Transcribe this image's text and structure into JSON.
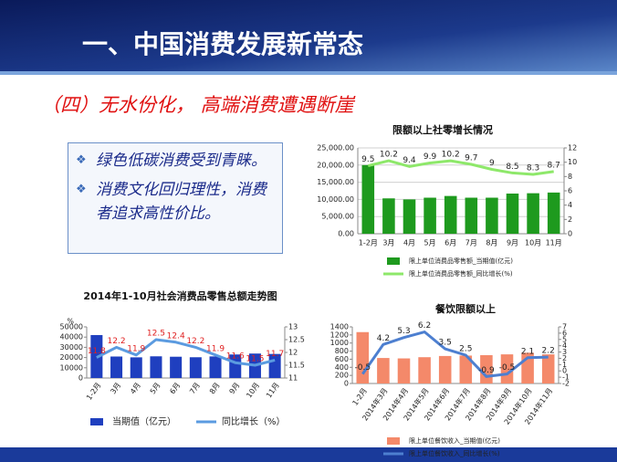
{
  "slide": {
    "title": "一、中国消费发展新常态",
    "subtitle": "（四）无水份化，  高端消费遭遇断崖",
    "bullets": [
      "绿色低碳消费受到青睐。",
      "消费文化回归理性，消费者追求高性价比。"
    ]
  },
  "chart_data": [
    {
      "type": "bar",
      "title": "限额以上社零增长情况",
      "categories": [
        "1-2月",
        "3月",
        "4月",
        "5月",
        "6月",
        "7月",
        "8月",
        "9月",
        "10月",
        "11月"
      ],
      "series": [
        {
          "name": "限上单位消费品零售额_当期值(亿元)",
          "color": "#1e9a1e",
          "values": [
            20000,
            10300,
            10000,
            10500,
            11000,
            10500,
            10500,
            11700,
            11800,
            12000
          ]
        },
        {
          "name": "限上单位消费品零售额_同比增长(%)",
          "type": "line",
          "axis": "y2",
          "color": "#8ee86a",
          "label_color": "#222",
          "data_labels": true,
          "values": [
            9.5,
            10.2,
            9.4,
            9.9,
            10.2,
            9.7,
            9,
            8.5,
            8.3,
            8.7
          ]
        }
      ],
      "ylim": [
        0,
        25000
      ],
      "yticks": [
        {
          "value": 0,
          "label": "0.00"
        },
        {
          "value": 5000,
          "label": "5,000.00"
        },
        {
          "value": 10000,
          "label": "10,000.00"
        },
        {
          "value": 15000,
          "label": "15,000.00"
        },
        {
          "value": 20000,
          "label": "20,000.00"
        },
        {
          "value": 25000,
          "label": "25,000.00"
        }
      ],
      "y2lim": [
        0,
        12
      ],
      "y2ticks": [
        0,
        2,
        4,
        6,
        8,
        10,
        12
      ],
      "grid": true,
      "legend": "bottom"
    },
    {
      "type": "bar",
      "title": "2014年1-10月社会消费品零售总额走势图",
      "y2_label": "%",
      "categories": [
        "1-2月",
        "3月",
        "4月",
        "5月",
        "6月",
        "7月",
        "8月",
        "9月",
        "10月",
        "11月"
      ],
      "series": [
        {
          "name": "当期值（亿元）",
          "color": "#1f3fbf",
          "values": [
            42000,
            21000,
            20200,
            21200,
            20800,
            20300,
            21100,
            23000,
            23900,
            23500
          ]
        },
        {
          "name": "同比增长（%）",
          "type": "line",
          "axis": "y2",
          "color": "#5b9be0",
          "label_color": "#e02020",
          "data_labels": true,
          "values": [
            11.8,
            12.2,
            11.9,
            12.5,
            12.4,
            12.2,
            11.9,
            11.6,
            11.5,
            11.7
          ]
        }
      ],
      "ylim": [
        0,
        50000
      ],
      "yticks": [
        0,
        10000,
        20000,
        30000,
        40000,
        50000
      ],
      "y2lim": [
        11,
        13
      ],
      "y2ticks": [
        11,
        11.5,
        12,
        12.5,
        13
      ],
      "grid": false,
      "legend": "bottom"
    },
    {
      "type": "bar",
      "title": "餐饮限额以上",
      "categories": [
        "1-2月",
        "2014年3月",
        "2014年4月",
        "2014年5月",
        "2014年6月",
        "2014年7月",
        "2014年8月",
        "2014年9月",
        "2014年10月",
        "2014年11月"
      ],
      "series": [
        {
          "name": "限上单位餐饮收入_当期值(亿元)",
          "color": "#f4896a",
          "values": [
            1270,
            630,
            620,
            650,
            680,
            690,
            700,
            720,
            760,
            720
          ]
        },
        {
          "name": "限上单位餐饮收入_同比增长(%)",
          "type": "line",
          "axis": "y2",
          "color": "#4d7fd0",
          "label_color": "#222",
          "data_labels": true,
          "values": [
            -0.5,
            4.2,
            5.3,
            6.2,
            3.5,
            2.5,
            -0.9,
            -0.5,
            2.1,
            2.2
          ]
        }
      ],
      "ylim": [
        0,
        1400
      ],
      "yticks": [
        0,
        200,
        400,
        600,
        800,
        1000,
        1200,
        1400
      ],
      "y2lim": [
        -2,
        7
      ],
      "y2ticks": [
        -2,
        -1,
        0,
        1,
        2,
        3,
        4,
        5,
        6,
        7
      ],
      "grid": false,
      "legend": "bottom"
    }
  ]
}
